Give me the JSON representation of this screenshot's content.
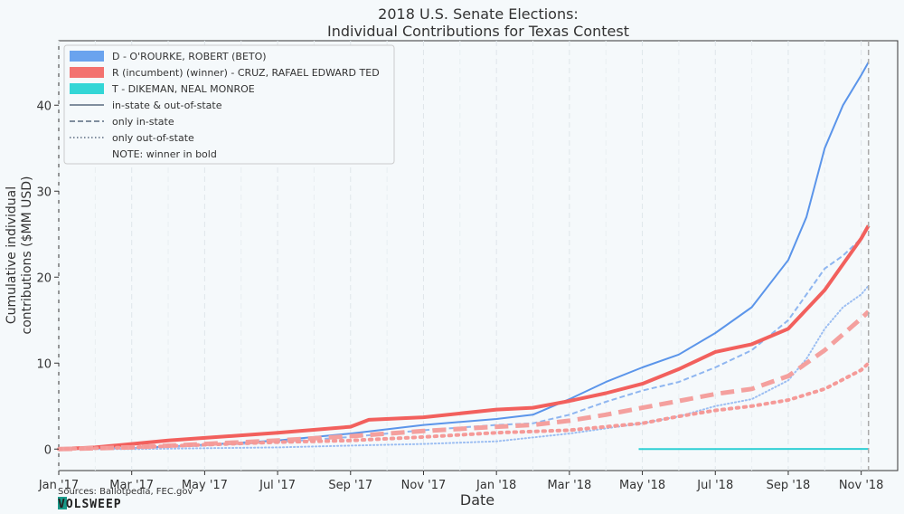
{
  "chart_data": {
    "type": "line",
    "title": "2018 U.S. Senate Elections:",
    "subtitle": "Individual Contributions for Texas Contest",
    "xlabel": "Date",
    "ylabel": "Cumulative individual contributions ($MM USD)",
    "ylabel_line1": "Cumulative individual",
    "ylabel_line2": "contributions ($MM USD)",
    "x_ticks": [
      "Jan '17",
      "Mar '17",
      "May '17",
      "Jul '17",
      "Sep '17",
      "Nov '17",
      "Jan '18",
      "Mar '18",
      "May '18",
      "Jul '18",
      "Sep '18",
      "Nov '18"
    ],
    "x_tick_months": [
      0,
      2,
      4,
      6,
      8,
      10,
      12,
      14,
      16,
      18,
      20,
      22
    ],
    "xlim_months": [
      0,
      23.0
    ],
    "y_ticks": [
      0,
      10,
      20,
      30,
      40
    ],
    "ylim": [
      -2.5,
      47.5
    ],
    "grid": true,
    "legend_position": "top-left",
    "election_marker_month": 22.2,
    "legend": [
      {
        "label": "D - O'ROURKE, ROBERT (BETO)",
        "kind": "patch",
        "color": "#6aa3ee"
      },
      {
        "label": "R (incumbent) (winner) - CRUZ, RAFAEL EDWARD  TED",
        "kind": "patch",
        "color": "#f3726f"
      },
      {
        "label": "T - DIKEMAN, NEAL MONROE",
        "kind": "patch",
        "color": "#33d6d6"
      },
      {
        "label": "in-state & out-of-state",
        "kind": "line",
        "dash": "solid"
      },
      {
        "label": "only in-state",
        "kind": "line",
        "dash": "dashed"
      },
      {
        "label": "only out-of-state",
        "kind": "line",
        "dash": "dotted"
      },
      {
        "label": "NOTE: winner in bold",
        "kind": "text"
      }
    ],
    "series": [
      {
        "candidate": "D",
        "style": "solid",
        "color": "#5b95ea",
        "width": 2,
        "x": [
          0,
          2,
          4,
          6,
          8,
          10,
          12,
          13,
          14,
          15,
          16,
          17,
          18,
          19,
          20,
          20.5,
          21,
          21.5,
          22,
          22.2
        ],
        "y": [
          0,
          0.1,
          0.5,
          1.0,
          1.8,
          2.8,
          3.5,
          4.0,
          5.8,
          7.8,
          9.5,
          11.0,
          13.5,
          16.5,
          22.0,
          27.0,
          35.0,
          40.0,
          43.5,
          45.0
        ]
      },
      {
        "candidate": "D",
        "style": "dashed",
        "color": "#8fb6f0",
        "width": 2,
        "x": [
          0,
          2,
          4,
          6,
          8,
          10,
          12,
          13,
          14,
          15,
          16,
          17,
          18,
          19,
          20,
          21,
          21.5,
          22,
          22.2
        ],
        "y": [
          0,
          0.1,
          0.4,
          0.8,
          1.4,
          2.2,
          2.8,
          3.0,
          4.0,
          5.5,
          6.8,
          7.8,
          9.5,
          11.5,
          15.0,
          21.0,
          22.5,
          24.5,
          25.8
        ]
      },
      {
        "candidate": "D",
        "style": "dotted",
        "color": "#9cbef2",
        "width": 2,
        "x": [
          0,
          2,
          4,
          6,
          8,
          10,
          12,
          14,
          15,
          16,
          17,
          18,
          19,
          20,
          20.5,
          21,
          21.5,
          22,
          22.2
        ],
        "y": [
          0,
          0.0,
          0.1,
          0.2,
          0.4,
          0.6,
          0.9,
          1.8,
          2.4,
          3.0,
          3.8,
          5.0,
          5.8,
          8.0,
          10.5,
          14.0,
          16.5,
          18.0,
          19.0
        ]
      },
      {
        "candidate": "R",
        "style": "solid",
        "color": "#f2605d",
        "width": 4,
        "x": [
          0,
          1,
          2,
          3,
          4,
          6,
          8,
          8.5,
          10,
          12,
          13,
          14,
          15,
          16,
          17,
          18,
          19,
          20,
          21,
          22,
          22.2
        ],
        "y": [
          0,
          0.2,
          0.6,
          1.0,
          1.3,
          1.9,
          2.6,
          3.4,
          3.7,
          4.6,
          4.8,
          5.6,
          6.5,
          7.6,
          9.3,
          11.3,
          12.2,
          14.0,
          18.5,
          24.5,
          26.0
        ]
      },
      {
        "candidate": "R",
        "style": "dashed",
        "color": "#f4a09e",
        "width": 5,
        "x": [
          0,
          2,
          4,
          6,
          8,
          10,
          12,
          13,
          14,
          15,
          16,
          17,
          18,
          19,
          20,
          21,
          22,
          22.2
        ],
        "y": [
          0,
          0.2,
          0.6,
          1.0,
          1.5,
          2.1,
          2.6,
          2.8,
          3.3,
          4.0,
          4.8,
          5.6,
          6.4,
          7.0,
          8.5,
          11.5,
          15.2,
          16.0
        ]
      },
      {
        "candidate": "R",
        "style": "dotted",
        "color": "#f59a98",
        "width": 4,
        "x": [
          0,
          2,
          4,
          6,
          8,
          10,
          12,
          14,
          16,
          17,
          18,
          19,
          20,
          21,
          22,
          22.2
        ],
        "y": [
          0,
          0.2,
          0.5,
          0.8,
          1.0,
          1.4,
          1.9,
          2.2,
          3.0,
          3.8,
          4.5,
          5.0,
          5.7,
          7.0,
          9.2,
          10.0
        ]
      },
      {
        "candidate": "T",
        "style": "solid",
        "color": "#2ecfd4",
        "width": 2,
        "x": [
          15.9,
          22.2
        ],
        "y": [
          0.0,
          0.02
        ]
      }
    ]
  },
  "footer": {
    "sources": "Sources: Ballotpedia, FEC.gov",
    "logo_text": "VOLSWEEP"
  }
}
